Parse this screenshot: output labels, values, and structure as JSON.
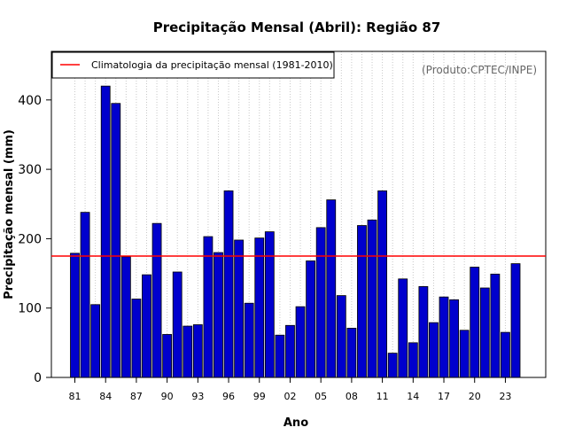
{
  "chart_data": {
    "type": "bar",
    "title": "Precipitação Mensal (Abril): Região 87",
    "xlabel": "Ano",
    "ylabel": "Precipitação mensal (mm)",
    "ylim": [
      0,
      470
    ],
    "yticks": [
      0,
      100,
      200,
      300,
      400
    ],
    "grid": "vertical dotted",
    "legend_position": "top-left",
    "credit": "(Produto:CPTEC/INPE)",
    "bar_color": "#0000cd",
    "climatology_color": "#ff0000",
    "categories": [
      "1981",
      "1982",
      "1983",
      "1984",
      "1985",
      "1986",
      "1987",
      "1988",
      "1989",
      "1990",
      "1991",
      "1992",
      "1993",
      "1994",
      "1995",
      "1996",
      "1997",
      "1998",
      "1999",
      "2000",
      "2001",
      "2002",
      "2003",
      "2004",
      "2005",
      "2006",
      "2007",
      "2008",
      "2009",
      "2010",
      "2011",
      "2012",
      "2013",
      "2014",
      "2015",
      "2016",
      "2017",
      "2018",
      "2019",
      "2020",
      "2021",
      "2022",
      "2023",
      "2024"
    ],
    "xtick_labels": [
      {
        "index": 0,
        "label": "81"
      },
      {
        "index": 3,
        "label": "84"
      },
      {
        "index": 6,
        "label": "87"
      },
      {
        "index": 9,
        "label": "90"
      },
      {
        "index": 12,
        "label": "93"
      },
      {
        "index": 15,
        "label": "96"
      },
      {
        "index": 18,
        "label": "99"
      },
      {
        "index": 21,
        "label": "02"
      },
      {
        "index": 24,
        "label": "05"
      },
      {
        "index": 27,
        "label": "08"
      },
      {
        "index": 30,
        "label": "11"
      },
      {
        "index": 33,
        "label": "14"
      },
      {
        "index": 36,
        "label": "17"
      },
      {
        "index": 39,
        "label": "20"
      },
      {
        "index": 42,
        "label": "23"
      }
    ],
    "series": [
      {
        "name": "Precipitação mensal",
        "values": [
          179,
          238,
          105,
          420,
          395,
          174,
          113,
          148,
          222,
          62,
          152,
          74,
          76,
          203,
          180,
          269,
          198,
          107,
          201,
          210,
          61,
          75,
          102,
          168,
          216,
          256,
          118,
          71,
          219,
          227,
          269,
          35,
          142,
          50,
          131,
          79,
          116,
          112,
          68,
          159,
          129,
          149,
          65,
          164
        ]
      }
    ],
    "climatology": {
      "label": "Climatologia da precipitação mensal (1981-2010)",
      "value": 175
    }
  }
}
